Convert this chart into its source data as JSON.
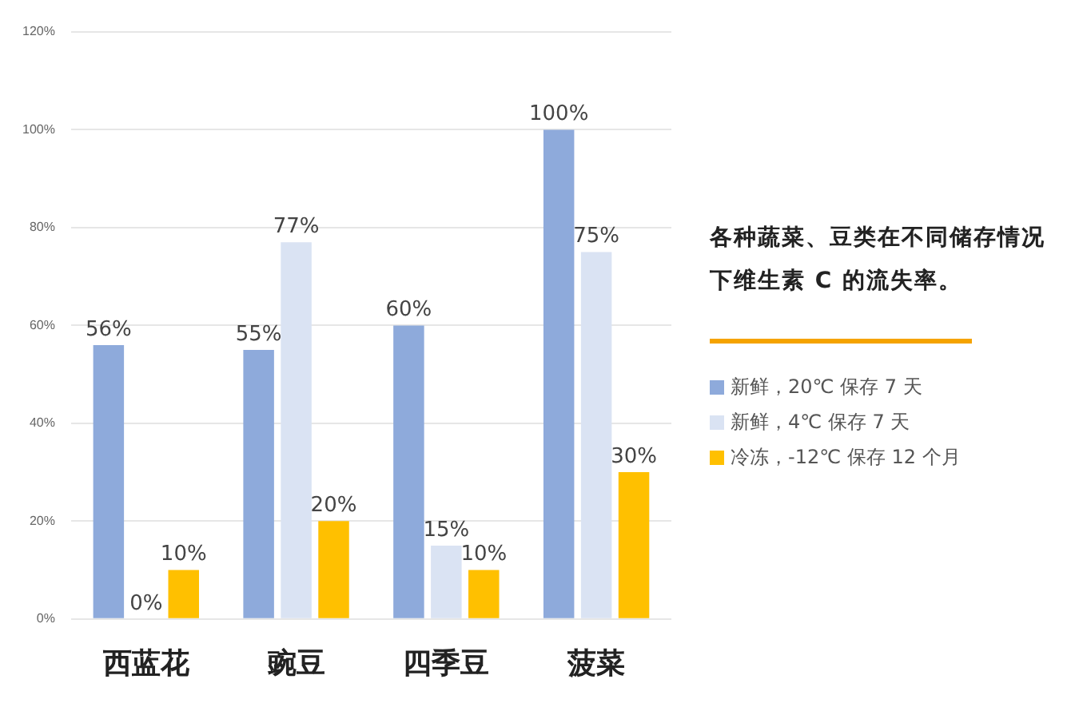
{
  "chart_data": {
    "type": "bar",
    "title": "各种蔬菜、豆类在不同储存情况下维生素 C 的流失率。",
    "categories": [
      "西蓝花",
      "豌豆",
      "四季豆",
      "菠菜"
    ],
    "series": [
      {
        "name": "新鲜，20℃ 保存 7 天",
        "color": "#8eaadb",
        "values": [
          56,
          55,
          60,
          100
        ],
        "value_labels": [
          "56%",
          "55%",
          "60%",
          "100%"
        ]
      },
      {
        "name": "新鲜，4℃ 保存 7 天",
        "color": "#dae3f3",
        "values": [
          0,
          77,
          15,
          75
        ],
        "value_labels": [
          "0%",
          "77%",
          "15%",
          "75%"
        ]
      },
      {
        "name": "冷冻，-12℃ 保存 12 个月",
        "color": "#ffc000",
        "values": [
          10,
          20,
          10,
          30
        ],
        "value_labels": [
          "10%",
          "20%",
          "10%",
          "30%"
        ]
      }
    ],
    "ylim": [
      0,
      120
    ],
    "yticks": [
      {
        "value": 0,
        "label": "0%"
      },
      {
        "value": 20,
        "label": "20%"
      },
      {
        "value": 40,
        "label": "40%"
      },
      {
        "value": 60,
        "label": "60%"
      },
      {
        "value": 80,
        "label": "80%"
      },
      {
        "value": 100,
        "label": "100%"
      },
      {
        "value": 120,
        "label": "120%"
      }
    ],
    "grid": "y",
    "legend": "right"
  }
}
